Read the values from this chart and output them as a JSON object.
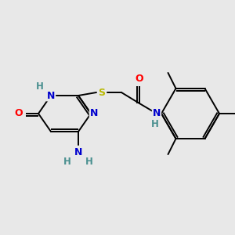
{
  "background_color": "#e8e8e8",
  "bond_color": "#000000",
  "atom_colors": {
    "N": "#0000cd",
    "O": "#ff0000",
    "S": "#b8b800",
    "C": "#000000",
    "H": "#4a9090"
  },
  "figsize": [
    3.0,
    3.0
  ],
  "dpi": 100
}
